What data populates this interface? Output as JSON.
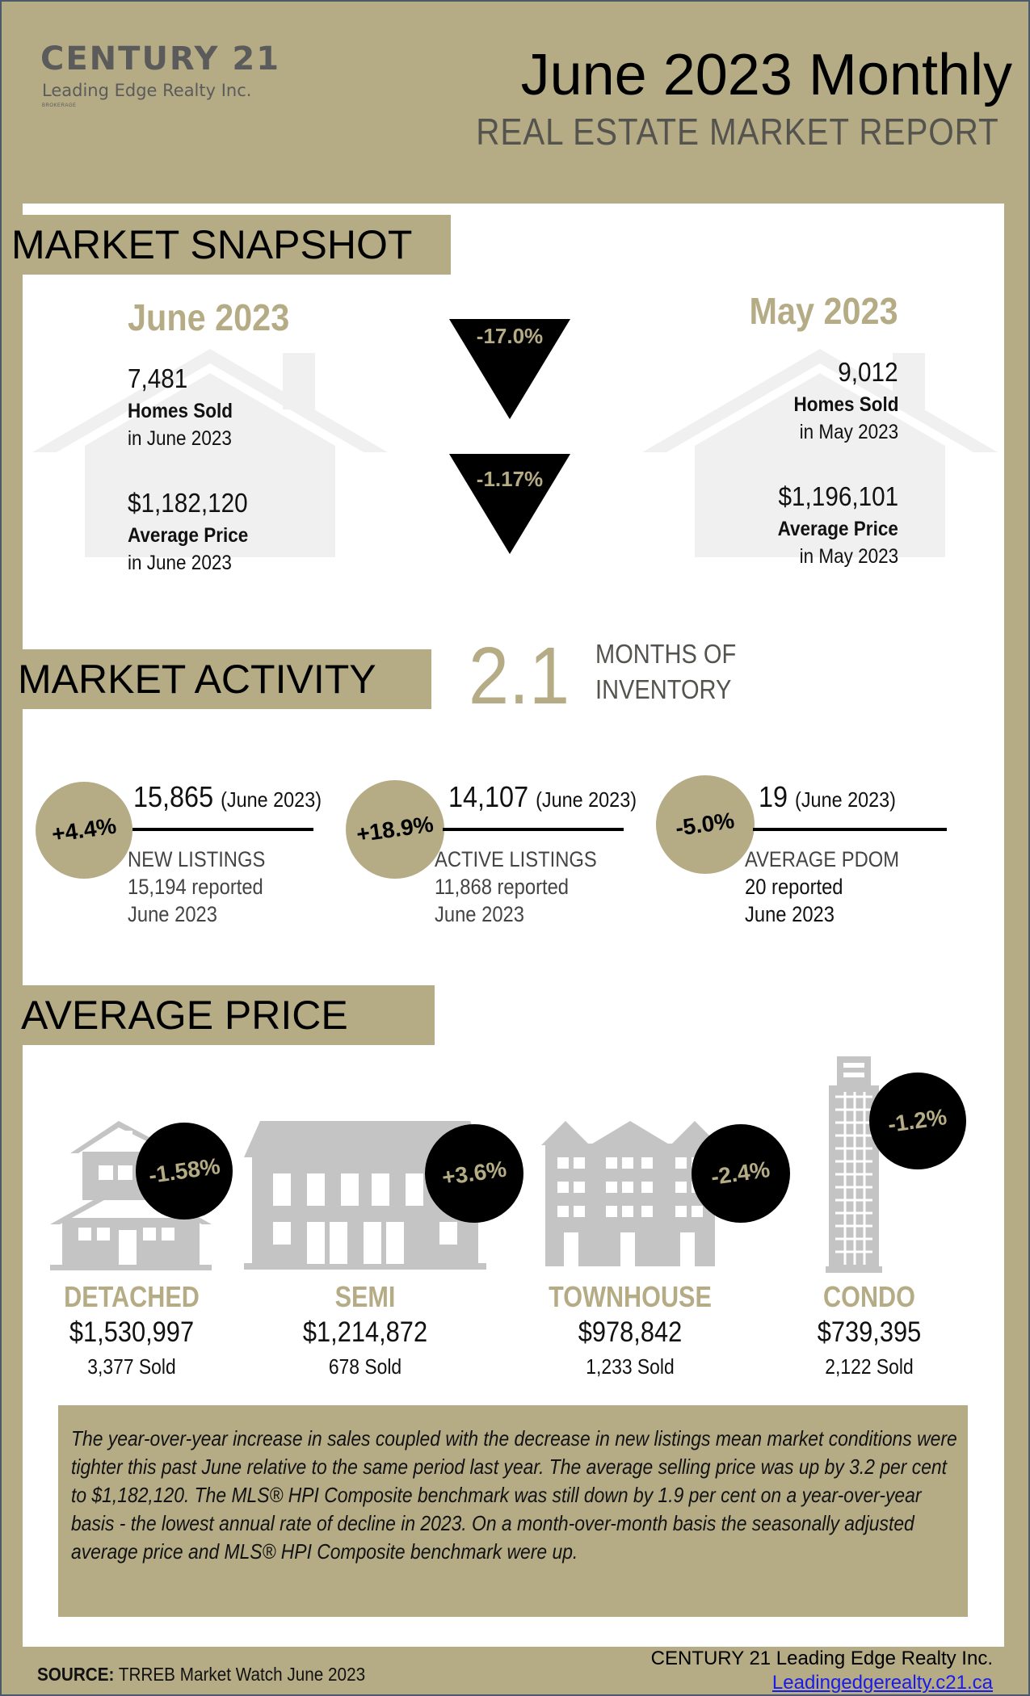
{
  "header": {
    "logo_name": "CENTURY 21",
    "logo_sub": "Leading Edge Realty Inc.",
    "logo_tiny": "BROKERAGE",
    "title": "June 2023 Monthly",
    "subtitle": "REAL ESTATE MARKET REPORT"
  },
  "snapshot": {
    "heading": "MARKET SNAPSHOT",
    "current": {
      "period": "June 2023",
      "homes_sold": "7,481",
      "homes_sold_label": "Homes Sold",
      "homes_sold_period": "in June 2023",
      "avg_price": "$1,182,120",
      "avg_price_label": "Average Price",
      "avg_price_period": "in June 2023"
    },
    "previous": {
      "period": "May 2023",
      "homes_sold": "9,012",
      "homes_sold_label": "Homes Sold",
      "homes_sold_period": "in May 2023",
      "avg_price": "$1,196,101",
      "avg_price_label": "Average Price",
      "avg_price_period": "in May 2023"
    },
    "change_sold": "-17.0%",
    "change_price": "-1.17%"
  },
  "activity": {
    "heading": "MARKET ACTIVITY",
    "moi_value": "2.1",
    "moi_line1": "MONTHS OF",
    "moi_line2": "INVENTORY",
    "items": [
      {
        "change": "+4.4%",
        "value": "15,865",
        "period": "(June 2023)",
        "label": "NEW LISTINGS",
        "reported": "15,194  reported",
        "reported_period": "June 2023"
      },
      {
        "change": "+18.9%",
        "value": "14,107",
        "period": "(June 2023)",
        "label": "ACTIVE LISTINGS",
        "reported": "11,868 reported",
        "reported_period": "June 2023"
      },
      {
        "change": "-5.0%",
        "value": "19",
        "period": "(June 2023)",
        "label": "AVERAGE PDOM",
        "reported": "20 reported",
        "reported_period": "June 2023"
      }
    ]
  },
  "average_price": {
    "heading": "AVERAGE PRICE",
    "types": [
      {
        "name": "DETACHED",
        "change": "-1.58%",
        "price": "$1,530,997",
        "sold": "3,377 Sold",
        "icon": "detached-house-icon"
      },
      {
        "name": "SEMI",
        "change": "+3.6%",
        "price": "$1,214,872",
        "sold": "678 Sold",
        "icon": "semi-house-icon"
      },
      {
        "name": "TOWNHOUSE",
        "change": "-2.4%",
        "price": "$978,842",
        "sold": "1,233 Sold",
        "icon": "townhouse-icon"
      },
      {
        "name": "CONDO",
        "change": "-1.2%",
        "price": "$739,395",
        "sold": "2,122 Sold",
        "icon": "condo-tower-icon"
      }
    ]
  },
  "summary": "The year-over-year increase in sales coupled with the decrease in new listings mean market conditions were tighter this past June relative to the same period last year. The average selling price was up by 3.2 per cent to $1,182,120. The MLS® HPI Composite benchmark was still down by 1.9 per cent on a year-over-year basis - the lowest annual rate of decline in 2023. On a month-over-month basis the seasonally adjusted average price and MLS® HPI Composite benchmark were up.",
  "footer": {
    "source_label": "SOURCE:",
    "source_text": " TRREB Market Watch June 2023",
    "company": "CENTURY 21 Leading Edge Realty Inc.",
    "link": "Leadingedgerealty.c21.ca"
  },
  "colors": {
    "tan": "#b5ac86",
    "dark_grey": "#55534d",
    "black": "#000000",
    "house_grey": "#c4c4c4",
    "house_light": "#f0f0f0"
  }
}
